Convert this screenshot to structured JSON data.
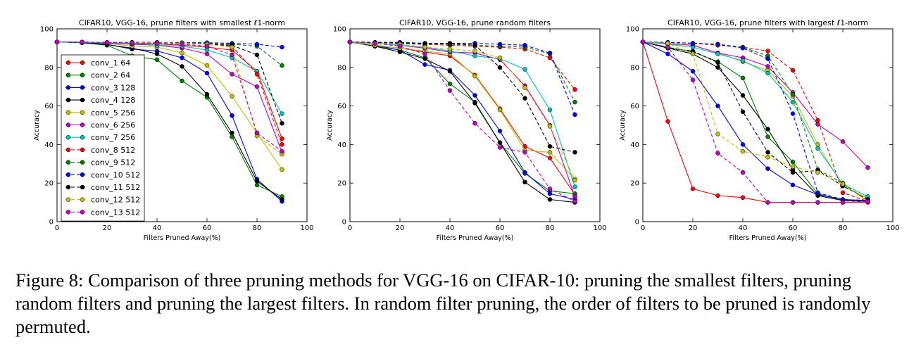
{
  "caption": {
    "label": "Figure 8:",
    "text": "Comparison of three pruning methods for VGG-16 on CIFAR-10: pruning the smallest filters, pruning random filters and pruning the largest filters. In random filter pruning, the order of filters to be pruned is randomly permuted."
  },
  "colors": {
    "conv_1 64": "#ff0000",
    "conv_2 64": "#008000",
    "conv_3 128": "#0000ff",
    "conv_4 128": "#000000",
    "conv_5 256": "#bfbf00",
    "conv_6 256": "#bf00bf",
    "conv_7 256": "#00bfbf",
    "conv_8 512": "#ff0000",
    "conv_9 512": "#008000",
    "conv_10 512": "#0000ff",
    "conv_11 512": "#000000",
    "conv_12 512": "#bfbf00",
    "conv_13 512": "#bf00bf"
  },
  "chart_data": [
    {
      "type": "line",
      "title": "CIFAR10, VGG-16, prune filters with smallest ℓ1-norm",
      "xlabel": "Filters Pruned Away(%)",
      "ylabel": "Accuracy",
      "xlim": [
        0,
        100
      ],
      "ylim": [
        0,
        100
      ],
      "xticks": [
        0,
        20,
        40,
        60,
        80,
        100
      ],
      "yticks": [
        0,
        20,
        40,
        60,
        80,
        100
      ],
      "grid": false,
      "legend": "left",
      "x": [
        0,
        10,
        20,
        30,
        40,
        50,
        60,
        70,
        80,
        90
      ],
      "series": [
        {
          "name": "conv_1 64",
          "style": "solid",
          "values": [
            93.2,
            93.1,
            92.8,
            92.5,
            92.2,
            91.5,
            90.5,
            89.0,
            78.0,
            43.0
          ]
        },
        {
          "name": "conv_2 64",
          "style": "solid",
          "values": [
            93.2,
            92.8,
            91.5,
            86.0,
            84.0,
            73.0,
            64.5,
            44.0,
            19.0,
            13.0
          ]
        },
        {
          "name": "conv_3 128",
          "style": "solid",
          "values": [
            93.2,
            92.8,
            92.0,
            89.5,
            88.5,
            85.0,
            77.0,
            55.0,
            22.0,
            10.5
          ]
        },
        {
          "name": "conv_4 128",
          "style": "solid",
          "values": [
            93.2,
            92.8,
            91.8,
            90.0,
            87.0,
            80.5,
            66.0,
            46.0,
            21.0,
            11.5
          ]
        },
        {
          "name": "conv_5 256",
          "style": "solid",
          "values": [
            93.2,
            93.0,
            92.5,
            91.0,
            90.5,
            87.5,
            81.0,
            65.0,
            46.0,
            27.0
          ]
        },
        {
          "name": "conv_6 256",
          "style": "solid",
          "values": [
            93.2,
            93.0,
            92.5,
            92.0,
            91.5,
            90.0,
            87.0,
            76.5,
            70.0,
            36.0
          ]
        },
        {
          "name": "conv_7 256",
          "style": "solid",
          "values": [
            93.2,
            93.0,
            92.8,
            92.5,
            91.5,
            91.0,
            89.0,
            85.0,
            78.0,
            56.0
          ]
        },
        {
          "name": "conv_8 512",
          "style": "dashed",
          "values": [
            93.2,
            93.1,
            93.0,
            93.0,
            92.8,
            92.5,
            92.0,
            91.0,
            76.5,
            40.0
          ]
        },
        {
          "name": "conv_9 512",
          "style": "dashed",
          "values": [
            93.2,
            93.1,
            93.0,
            93.0,
            92.8,
            92.5,
            92.5,
            92.0,
            91.0,
            81.0
          ]
        },
        {
          "name": "conv_10 512",
          "style": "dashed",
          "values": [
            93.2,
            93.1,
            93.0,
            93.0,
            93.0,
            92.8,
            92.8,
            92.5,
            92.0,
            90.5
          ]
        },
        {
          "name": "conv_11 512",
          "style": "dashed",
          "values": [
            93.2,
            93.1,
            93.0,
            93.0,
            92.8,
            92.5,
            92.0,
            91.5,
            86.5,
            51.0
          ]
        },
        {
          "name": "conv_12 512",
          "style": "dashed",
          "values": [
            93.2,
            93.1,
            93.0,
            93.0,
            92.8,
            92.5,
            92.0,
            90.5,
            44.5,
            35.0
          ]
        },
        {
          "name": "conv_13 512",
          "style": "dashed",
          "values": [
            93.2,
            93.1,
            93.0,
            92.8,
            92.5,
            92.0,
            91.0,
            86.5,
            46.0,
            36.5
          ]
        }
      ]
    },
    {
      "type": "line",
      "title": "CIFAR10, VGG-16, prune random filters",
      "xlabel": "Filters Pruned Away(%)",
      "ylabel": "Accuracy",
      "xlim": [
        0,
        100
      ],
      "ylim": [
        0,
        100
      ],
      "xticks": [
        0,
        20,
        40,
        60,
        80,
        100
      ],
      "yticks": [
        0,
        20,
        40,
        60,
        80,
        100
      ],
      "grid": false,
      "x": [
        0,
        10,
        20,
        30,
        40,
        50,
        60,
        70,
        80,
        90
      ],
      "series": [
        {
          "name": "conv_1 64",
          "style": "solid",
          "values": [
            93.2,
            91.5,
            90.0,
            88.0,
            86.0,
            76.0,
            58.5,
            39.0,
            33.0,
            14.0
          ]
        },
        {
          "name": "conv_2 64",
          "style": "solid",
          "values": [
            93.2,
            91.0,
            89.0,
            85.0,
            71.5,
            62.0,
            41.0,
            25.0,
            16.0,
            14.5
          ]
        },
        {
          "name": "conv_3 128",
          "style": "solid",
          "values": [
            93.2,
            91.5,
            89.0,
            81.5,
            78.5,
            65.5,
            47.0,
            25.5,
            14.5,
            11.5
          ]
        },
        {
          "name": "conv_4 128",
          "style": "solid",
          "values": [
            93.2,
            91.0,
            88.0,
            84.5,
            78.0,
            61.5,
            41.0,
            20.5,
            11.5,
            10.0
          ]
        },
        {
          "name": "conv_5 256",
          "style": "solid",
          "values": [
            93.2,
            91.5,
            90.0,
            88.5,
            87.0,
            75.5,
            58.0,
            37.0,
            36.0,
            22.0
          ]
        },
        {
          "name": "conv_6 256",
          "style": "solid",
          "values": [
            93.2,
            92.5,
            91.5,
            90.0,
            88.0,
            87.5,
            84.0,
            70.5,
            50.0,
            13.0
          ]
        },
        {
          "name": "conv_7 256",
          "style": "solid",
          "values": [
            93.2,
            92.5,
            91.5,
            90.5,
            88.5,
            86.0,
            84.5,
            79.0,
            58.0,
            18.0
          ]
        },
        {
          "name": "conv_8 512",
          "style": "dashed",
          "values": [
            93.2,
            93.0,
            92.5,
            92.0,
            91.5,
            91.0,
            90.5,
            89.5,
            85.0,
            68.5
          ]
        },
        {
          "name": "conv_9 512",
          "style": "dashed",
          "values": [
            93.2,
            93.0,
            92.5,
            92.5,
            92.0,
            91.5,
            91.0,
            90.5,
            87.0,
            62.0
          ]
        },
        {
          "name": "conv_10 512",
          "style": "dashed",
          "values": [
            93.2,
            93.0,
            93.0,
            92.5,
            92.5,
            92.5,
            92.0,
            91.5,
            87.5,
            55.5
          ]
        },
        {
          "name": "conv_11 512",
          "style": "dashed",
          "values": [
            93.2,
            93.0,
            92.5,
            92.0,
            92.5,
            91.5,
            80.0,
            64.0,
            39.0,
            36.0
          ]
        },
        {
          "name": "conv_12 512",
          "style": "dashed",
          "values": [
            93.2,
            92.5,
            92.0,
            90.5,
            89.5,
            88.5,
            85.0,
            69.5,
            49.5,
            21.5
          ]
        },
        {
          "name": "conv_13 512",
          "style": "dashed",
          "values": [
            93.2,
            92.5,
            91.0,
            87.0,
            68.0,
            51.0,
            38.5,
            36.0,
            17.0,
            10.5
          ]
        }
      ]
    },
    {
      "type": "line",
      "title": "CIFAR10, VGG-16, prune filters with largest ℓ1-norm",
      "xlabel": "Filters Pruned Away(%)",
      "ylabel": "Accuracy",
      "xlim": [
        0,
        100
      ],
      "ylim": [
        0,
        100
      ],
      "xticks": [
        0,
        20,
        40,
        60,
        80,
        100
      ],
      "yticks": [
        0,
        20,
        40,
        60,
        80,
        100
      ],
      "grid": false,
      "x": [
        0,
        10,
        20,
        30,
        40,
        50,
        60,
        70,
        80,
        90
      ],
      "series": [
        {
          "name": "conv_1 64",
          "style": "solid",
          "values": [
            93.2,
            52.0,
            17.0,
            13.5,
            12.5,
            10.0,
            10.0,
            10.0,
            10.0,
            10.0
          ]
        },
        {
          "name": "conv_2 64",
          "style": "solid",
          "values": [
            93.2,
            90.5,
            88.0,
            83.0,
            74.5,
            44.0,
            31.0,
            14.5,
            11.0,
            10.5
          ]
        },
        {
          "name": "conv_3 128",
          "style": "solid",
          "values": [
            93.2,
            87.0,
            78.0,
            60.0,
            40.0,
            27.5,
            19.0,
            14.0,
            11.5,
            11.0
          ]
        },
        {
          "name": "conv_4 128",
          "style": "solid",
          "values": [
            93.2,
            90.0,
            87.0,
            80.0,
            65.5,
            48.0,
            27.0,
            13.5,
            11.0,
            10.5
          ]
        },
        {
          "name": "conv_5 256",
          "style": "solid",
          "values": [
            93.2,
            92.0,
            91.5,
            87.5,
            83.0,
            78.5,
            65.0,
            40.0,
            18.5,
            12.0
          ]
        },
        {
          "name": "conv_6 256",
          "style": "solid",
          "values": [
            93.2,
            92.5,
            91.5,
            87.5,
            85.0,
            80.5,
            67.0,
            50.5,
            41.5,
            28.0
          ]
        },
        {
          "name": "conv_7 256",
          "style": "solid",
          "values": [
            93.2,
            92.0,
            90.5,
            87.0,
            83.5,
            77.0,
            62.0,
            38.0,
            19.5,
            13.0
          ]
        },
        {
          "name": "conv_8 512",
          "style": "dashed",
          "values": [
            93.2,
            93.0,
            92.5,
            91.5,
            90.5,
            88.5,
            78.5,
            52.5,
            15.0,
            10.5
          ]
        },
        {
          "name": "conv_9 512",
          "style": "dashed",
          "values": [
            93.2,
            93.0,
            92.5,
            92.0,
            90.5,
            86.0,
            66.0,
            27.0,
            20.0,
            10.5
          ]
        },
        {
          "name": "conv_10 512",
          "style": "dashed",
          "values": [
            93.2,
            93.0,
            92.5,
            92.0,
            90.0,
            84.5,
            56.0,
            15.0,
            11.5,
            11.0
          ]
        },
        {
          "name": "conv_11 512",
          "style": "dashed",
          "values": [
            93.2,
            90.0,
            88.5,
            82.5,
            57.0,
            36.0,
            25.5,
            26.5,
            18.5,
            11.5
          ]
        },
        {
          "name": "conv_12 512",
          "style": "dashed",
          "values": [
            93.2,
            92.5,
            87.0,
            45.5,
            36.5,
            33.5,
            28.5,
            25.5,
            19.5,
            10.5
          ]
        },
        {
          "name": "conv_13 512",
          "style": "dashed",
          "values": [
            93.2,
            90.5,
            73.5,
            35.5,
            25.5,
            10.0,
            10.0,
            10.0,
            10.0,
            10.5
          ]
        }
      ]
    }
  ]
}
